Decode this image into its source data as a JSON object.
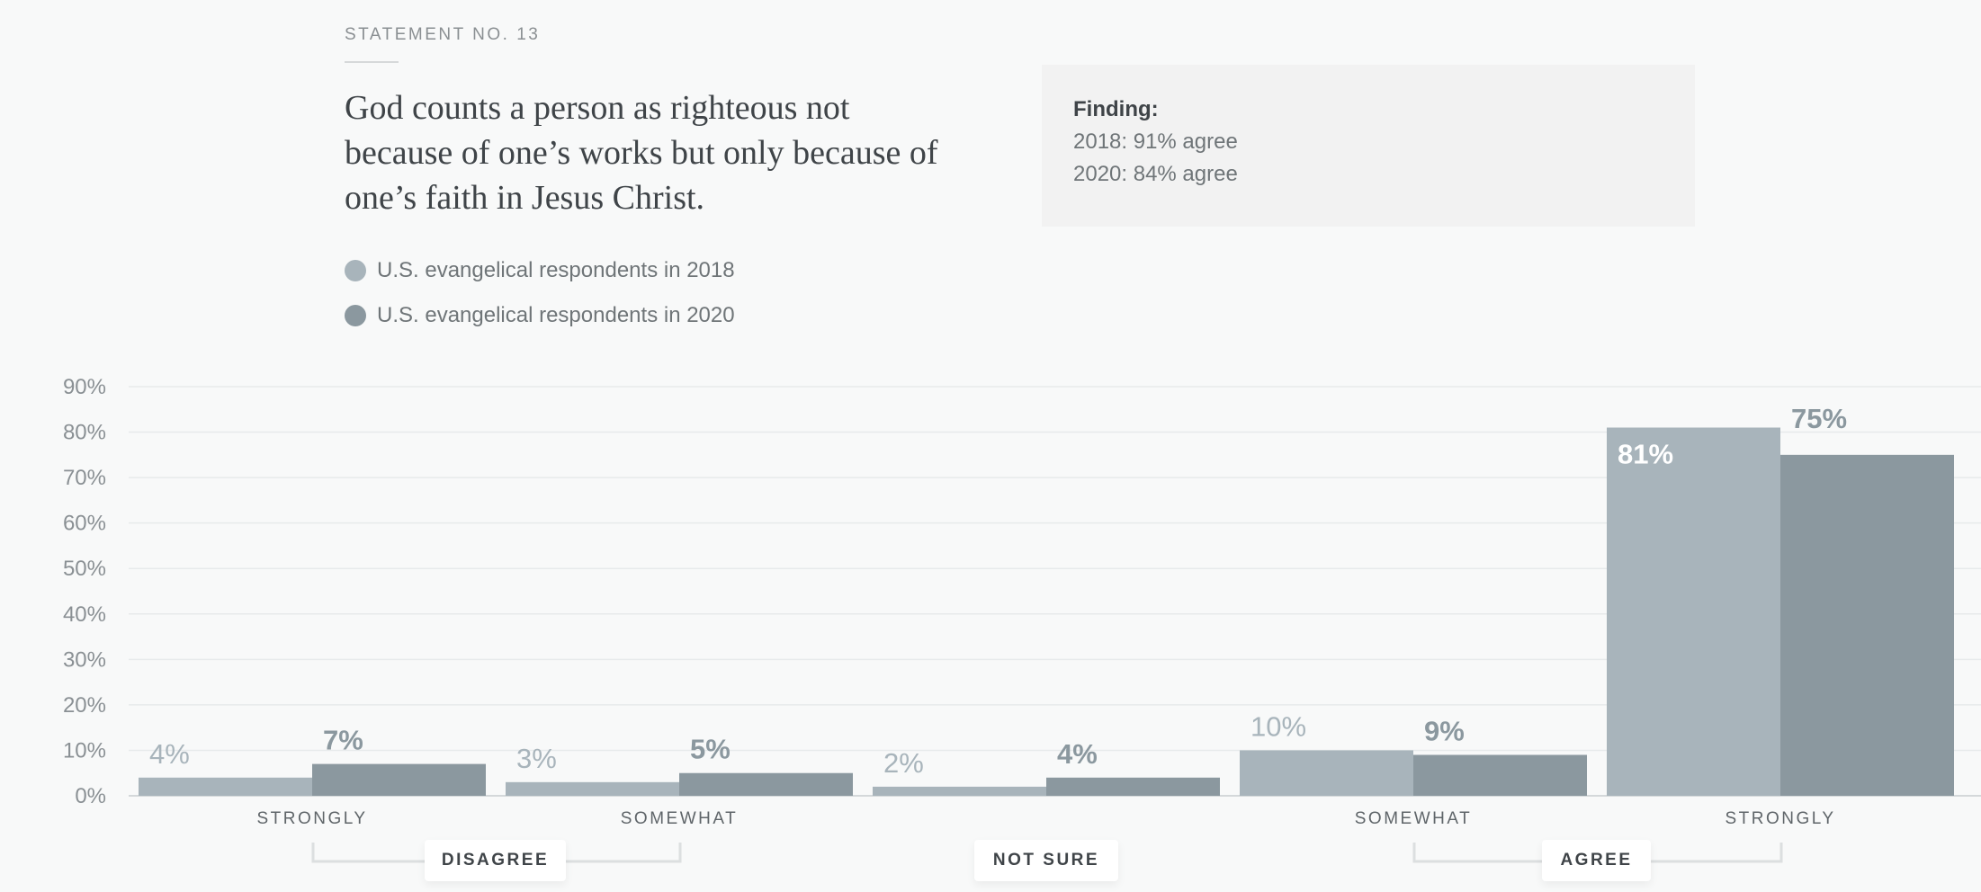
{
  "header": {
    "statement_no": "STATEMENT NO. 13",
    "statement": "God counts a person as righteous not because of one’s works but only because of one’s faith in Jesus Christ."
  },
  "legend": [
    {
      "label": "U.S. evangelical respondents in 2018",
      "color": "#a8b4bb"
    },
    {
      "label": "U.S. evangelical respondents in 2020",
      "color": "#8b989f"
    }
  ],
  "finding": {
    "label": "Finding:",
    "lines": [
      "2018: 91% agree",
      "2020: 84% agree"
    ]
  },
  "chart_data": {
    "type": "bar",
    "categories": [
      "STRONGLY",
      "SOMEWHAT",
      "",
      "SOMEWHAT",
      "STRONGLY"
    ],
    "groups": [
      "DISAGREE",
      "NOT SURE",
      "AGREE"
    ],
    "series": [
      {
        "values": [
          4,
          3,
          2,
          10,
          81
        ],
        "labels": [
          "4%",
          "3%",
          "2%",
          "10%",
          "81%"
        ],
        "color": "#a8b4bb"
      },
      {
        "values": [
          7,
          5,
          4,
          9,
          75
        ],
        "labels": [
          "7%",
          "5%",
          "4%",
          "9%",
          "75%"
        ],
        "color": "#8b989f"
      }
    ],
    "yticks": [
      "0%",
      "10%",
      "20%",
      "30%",
      "40%",
      "50%",
      "60%",
      "70%",
      "80%",
      "90%"
    ],
    "ylim": [
      0,
      90
    ],
    "grid": true
  }
}
